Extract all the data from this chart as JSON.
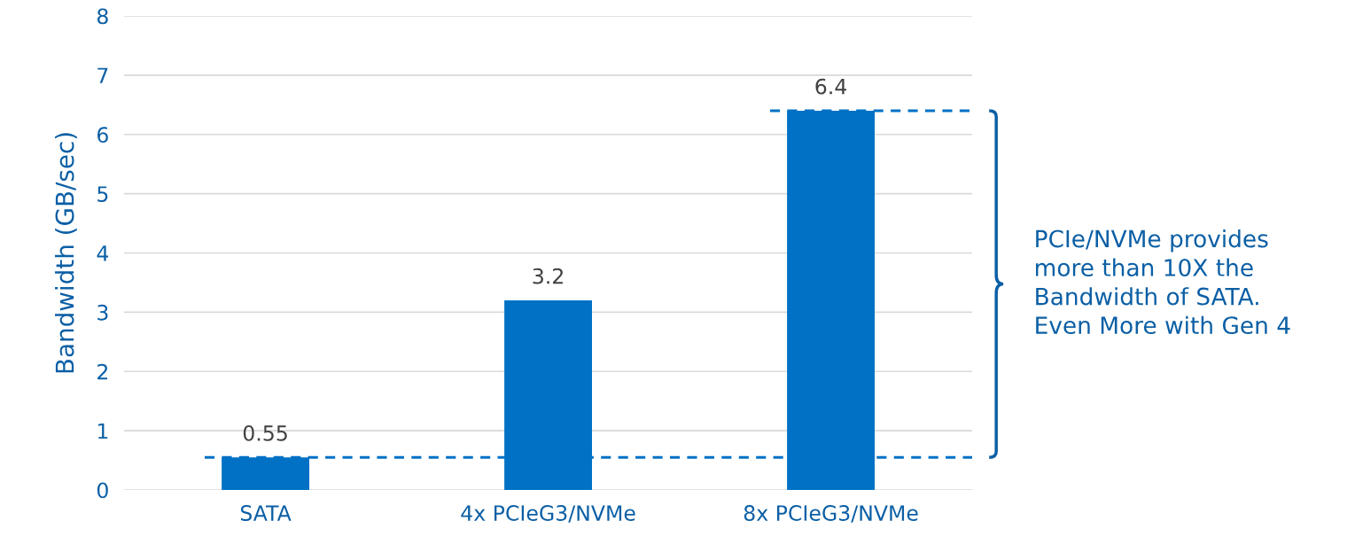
{
  "chart_data": {
    "type": "bar",
    "ylabel": "Bandwidth (GB/sec)",
    "categories": [
      "SATA",
      "4x PCIeG3/NVMe",
      "8x PCIeG3/NVMe"
    ],
    "values": [
      0.55,
      3.2,
      6.4
    ],
    "color": "#0071c5",
    "data_labels": true,
    "ylim": [
      0,
      8
    ],
    "yticks": [
      0,
      1,
      2,
      3,
      4,
      5,
      6,
      7,
      8
    ],
    "grid": "y",
    "ref_lines": [
      {
        "axis": "y",
        "value": 6.4,
        "color": "#0071c5",
        "line_style": "dashed"
      },
      {
        "axis": "y",
        "value": 0.55,
        "color": "#0071c5",
        "line_style": "dashed"
      }
    ],
    "annotations": [
      "PCIe/NVMe provides\nmore than 10X the\nBandwidth of SATA.\nEven More with Gen 4"
    ]
  }
}
